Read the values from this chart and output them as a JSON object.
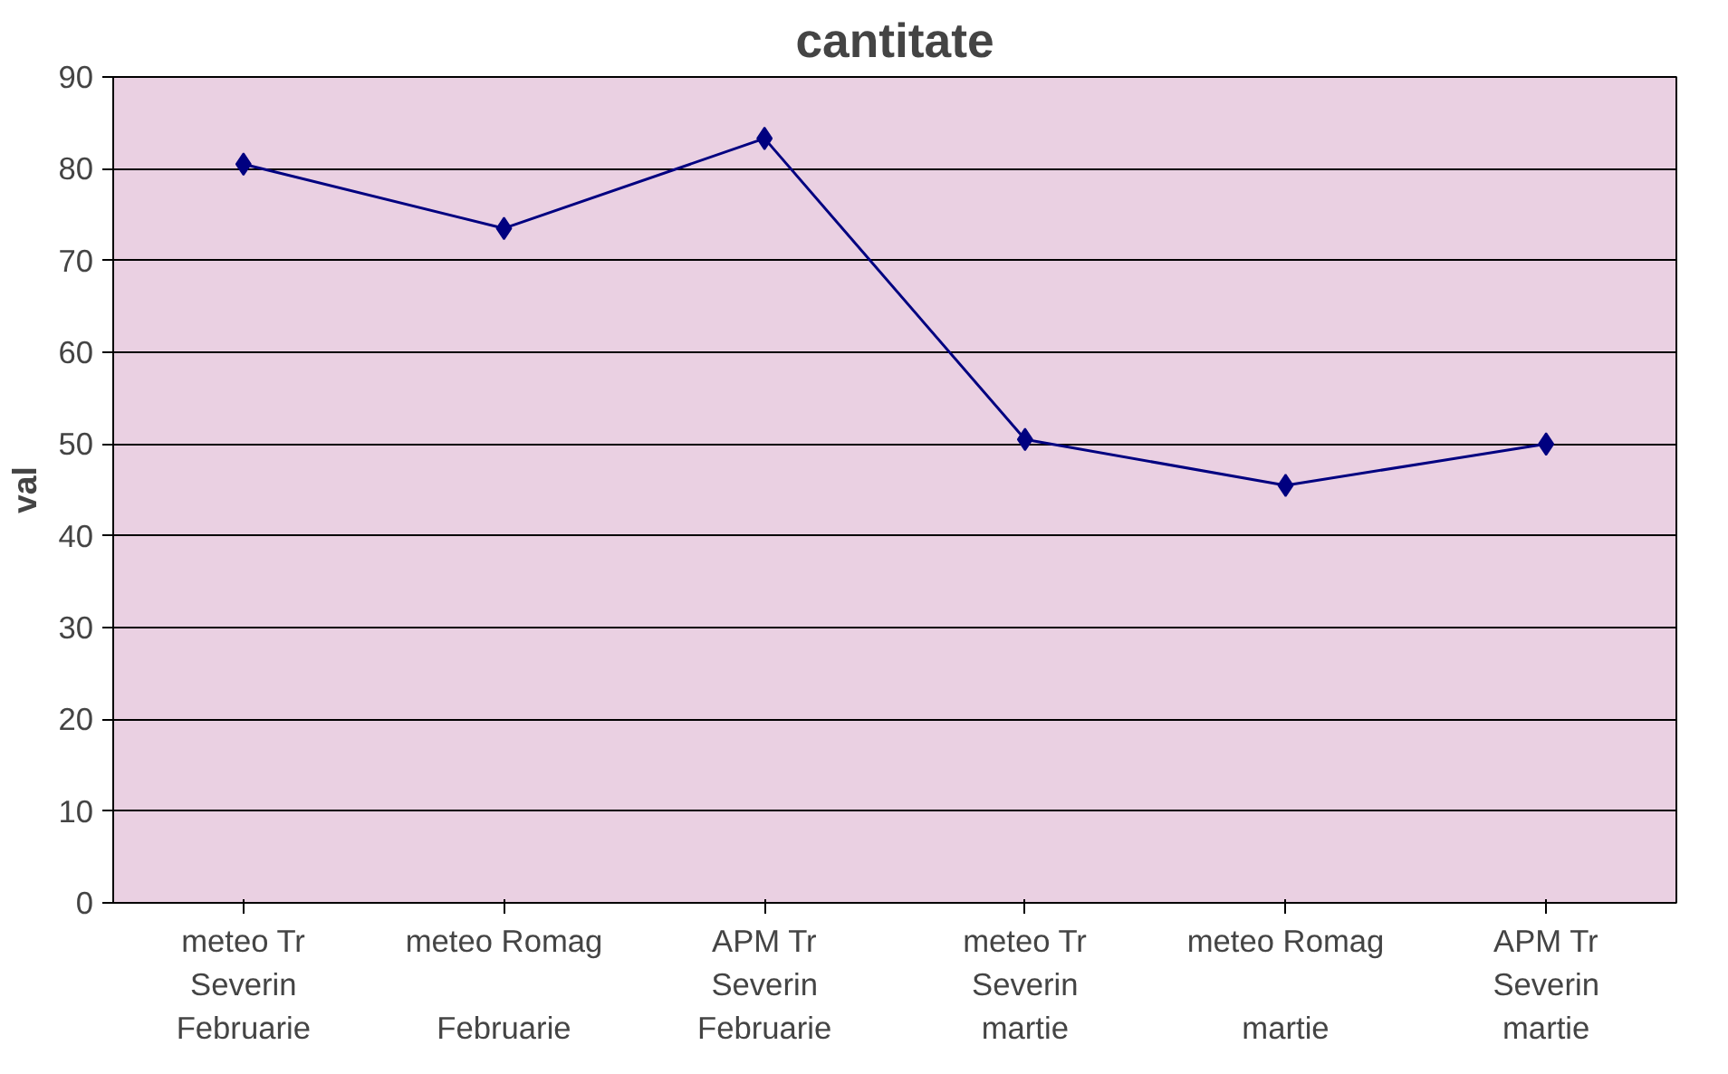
{
  "chart_data": {
    "type": "line",
    "title": "cantitate",
    "ylabel": "val",
    "categories": [
      "meteo Tr Severin\nFebruarie",
      "meteo Romag\nFebruarie",
      "APM Tr Severin\nFebruarie",
      "meteo Tr Severin\nmartie",
      "meteo Romag\nmartie",
      "APM Tr Severin\nmartie"
    ],
    "series": [
      {
        "color": "#000080",
        "values": [
          80.5,
          73.5,
          83.3,
          50.5,
          45.5,
          50
        ]
      }
    ],
    "ylim": [
      0,
      90
    ],
    "yticks": [
      0,
      10,
      20,
      30,
      40,
      50,
      60,
      70,
      80,
      90
    ],
    "grid": "y",
    "marker": "diamond",
    "line_style": "solid"
  }
}
